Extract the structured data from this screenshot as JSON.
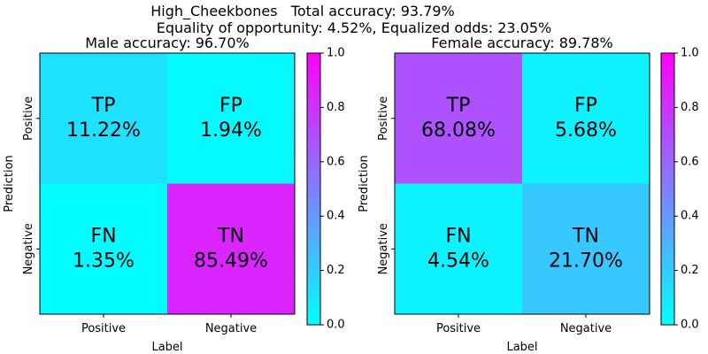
{
  "figure": {
    "suptitle_line1": "High_Cheekbones   Total accuracy: 93.79%",
    "suptitle_line2": "Equality of opportunity: 4.52%, Equalized odds: 23.05%",
    "colormap": [
      "#00ffff",
      "#ff00ff"
    ],
    "colorbar_ticks": [
      "0.0",
      "0.2",
      "0.4",
      "0.6",
      "0.8",
      "1.0"
    ]
  },
  "chart_data": [
    {
      "type": "heatmap",
      "title": "Male accuracy: 96.70%",
      "xlabel": "Label",
      "ylabel": "Prediction",
      "x_categories": [
        "Positive",
        "Negative"
      ],
      "y_categories": [
        "Positive",
        "Negative"
      ],
      "value_range": [
        0,
        1
      ],
      "cells": [
        {
          "name": "TP",
          "text": "11.22%",
          "value": 0.1122,
          "row": 0,
          "col": 0
        },
        {
          "name": "FP",
          "text": "1.94%",
          "value": 0.0194,
          "row": 0,
          "col": 1
        },
        {
          "name": "FN",
          "text": "1.35%",
          "value": 0.0135,
          "row": 1,
          "col": 0
        },
        {
          "name": "TN",
          "text": "85.49%",
          "value": 0.8549,
          "row": 1,
          "col": 1
        }
      ]
    },
    {
      "type": "heatmap",
      "title": "Female accuracy: 89.78%",
      "xlabel": "Label",
      "ylabel": "Prediction",
      "x_categories": [
        "Positive",
        "Negative"
      ],
      "y_categories": [
        "Positive",
        "Negative"
      ],
      "value_range": [
        0,
        1
      ],
      "cells": [
        {
          "name": "TP",
          "text": "68.08%",
          "value": 0.6808,
          "row": 0,
          "col": 0
        },
        {
          "name": "FP",
          "text": "5.68%",
          "value": 0.0568,
          "row": 0,
          "col": 1
        },
        {
          "name": "FN",
          "text": "4.54%",
          "value": 0.0454,
          "row": 1,
          "col": 0
        },
        {
          "name": "TN",
          "text": "21.70%",
          "value": 0.217,
          "row": 1,
          "col": 1
        }
      ]
    }
  ]
}
